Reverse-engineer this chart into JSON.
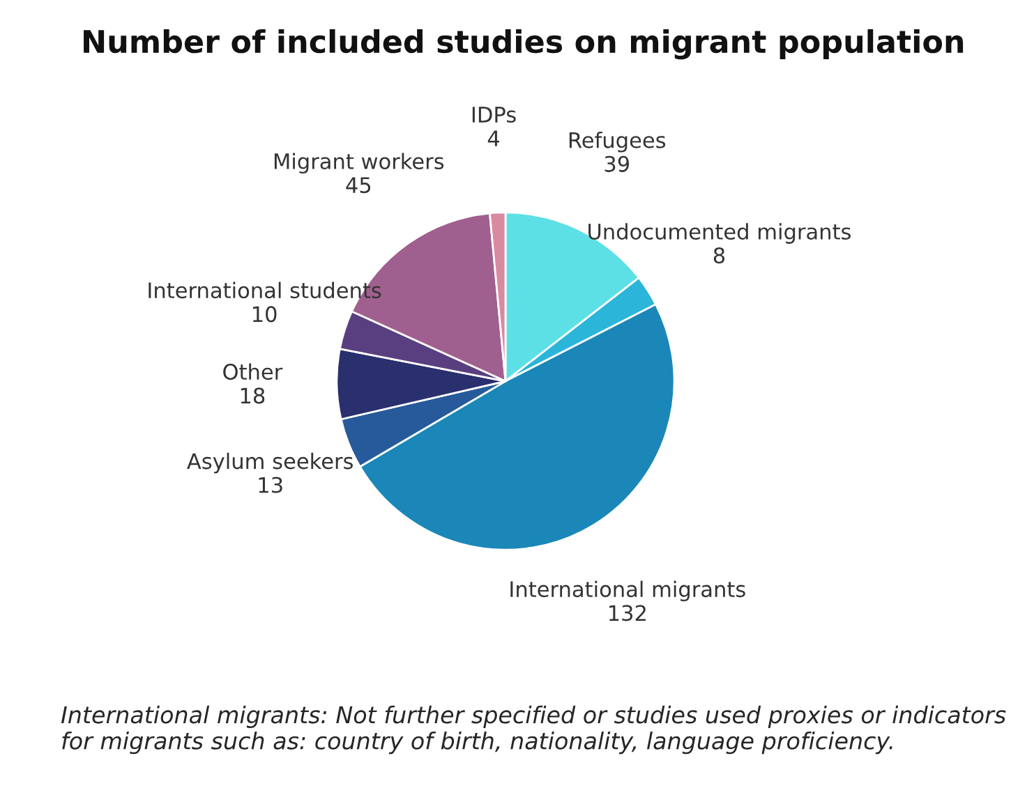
{
  "chart_data": {
    "type": "pie",
    "title": "Number of included studies on migrant population",
    "categories": [
      "Refugees",
      "Undocumented migrants",
      "International migrants",
      "Asylum seekers",
      "Other",
      "International students",
      "Migrant workers",
      "IDPs"
    ],
    "values": [
      39,
      8,
      132,
      13,
      18,
      10,
      45,
      4
    ],
    "colors": [
      "#5ce0e6",
      "#2bb5d8",
      "#1a87b8",
      "#265a9a",
      "#2a2f6e",
      "#5a3f80",
      "#a0608f",
      "#d88aa0"
    ],
    "data_labels": true,
    "annotations": [
      "International migrants: Not further specified or studies used proxies or indicators for migrants such as: country of birth, nationality, language proficiency."
    ]
  }
}
